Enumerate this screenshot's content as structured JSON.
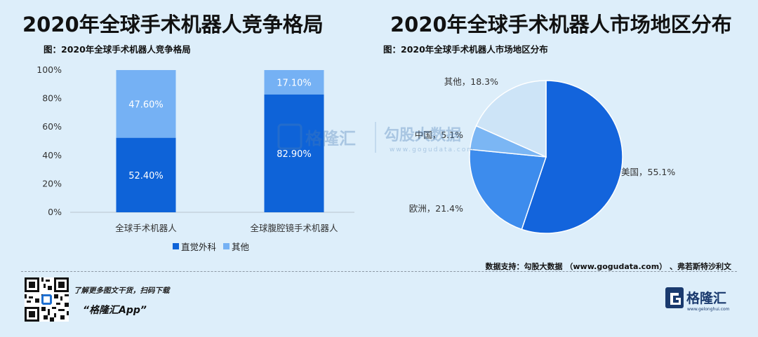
{
  "colors": {
    "background": "#ddeefa",
    "dark_blue": "#0e63d8",
    "light_blue": "#75b1f4",
    "pie_blue": "#1364dc",
    "pie_mid_blue": "#3d8ced",
    "pie_light_blue": "#7bb6f4",
    "pie_pale": "#cde4f7"
  },
  "left": {
    "title": "2020年全球手术机器人竞争格局",
    "subtitle": "图：2020年全球手术机器人竞争格局"
  },
  "right": {
    "title": "2020年全球手术机器人市场地区分布",
    "subtitle": "图：2020年全球手术机器人市场地区分布"
  },
  "chart_data": [
    {
      "type": "bar",
      "stacked": true,
      "categories": [
        "全球手术机器人",
        "全球腹腔镜手术机器人"
      ],
      "series": [
        {
          "name": "直觉外科",
          "values": [
            52.4,
            82.9
          ],
          "labels": [
            "52.40%",
            "82.90%"
          ],
          "color": "#0e63d8"
        },
        {
          "name": "其他",
          "values": [
            47.6,
            17.1
          ],
          "labels": [
            "47.60%",
            "17.10%"
          ],
          "color": "#75b1f4"
        }
      ],
      "y_ticks": [
        "0%",
        "20%",
        "40%",
        "60%",
        "80%",
        "100%"
      ],
      "ylim": [
        0,
        100
      ],
      "legend_position": "bottom"
    },
    {
      "type": "pie",
      "slices": [
        {
          "label": "美国，55.1%",
          "value": 55.1,
          "color": "#1364dc"
        },
        {
          "label": "欧洲，21.4%",
          "value": 21.4,
          "color": "#3d8ced"
        },
        {
          "label": "中国，5.1%",
          "value": 5.1,
          "color": "#7bb6f4"
        },
        {
          "label": "其他，18.3%",
          "value": 18.3,
          "color": "#cde4f7"
        }
      ]
    }
  ],
  "source": "数据支持：勾股大数据 （www.gogudata.com） 、弗若斯特沙利文",
  "footer": {
    "tagline": "了解更多图文干货，扫码下载",
    "app_name": "“格隆汇App”",
    "logo_text": "格隆汇",
    "logo_url": "www.gelonghui.com"
  },
  "watermark": {
    "brand1": "格隆汇",
    "brand2": "勾股大数据",
    "url": "www.gogudata.com"
  }
}
